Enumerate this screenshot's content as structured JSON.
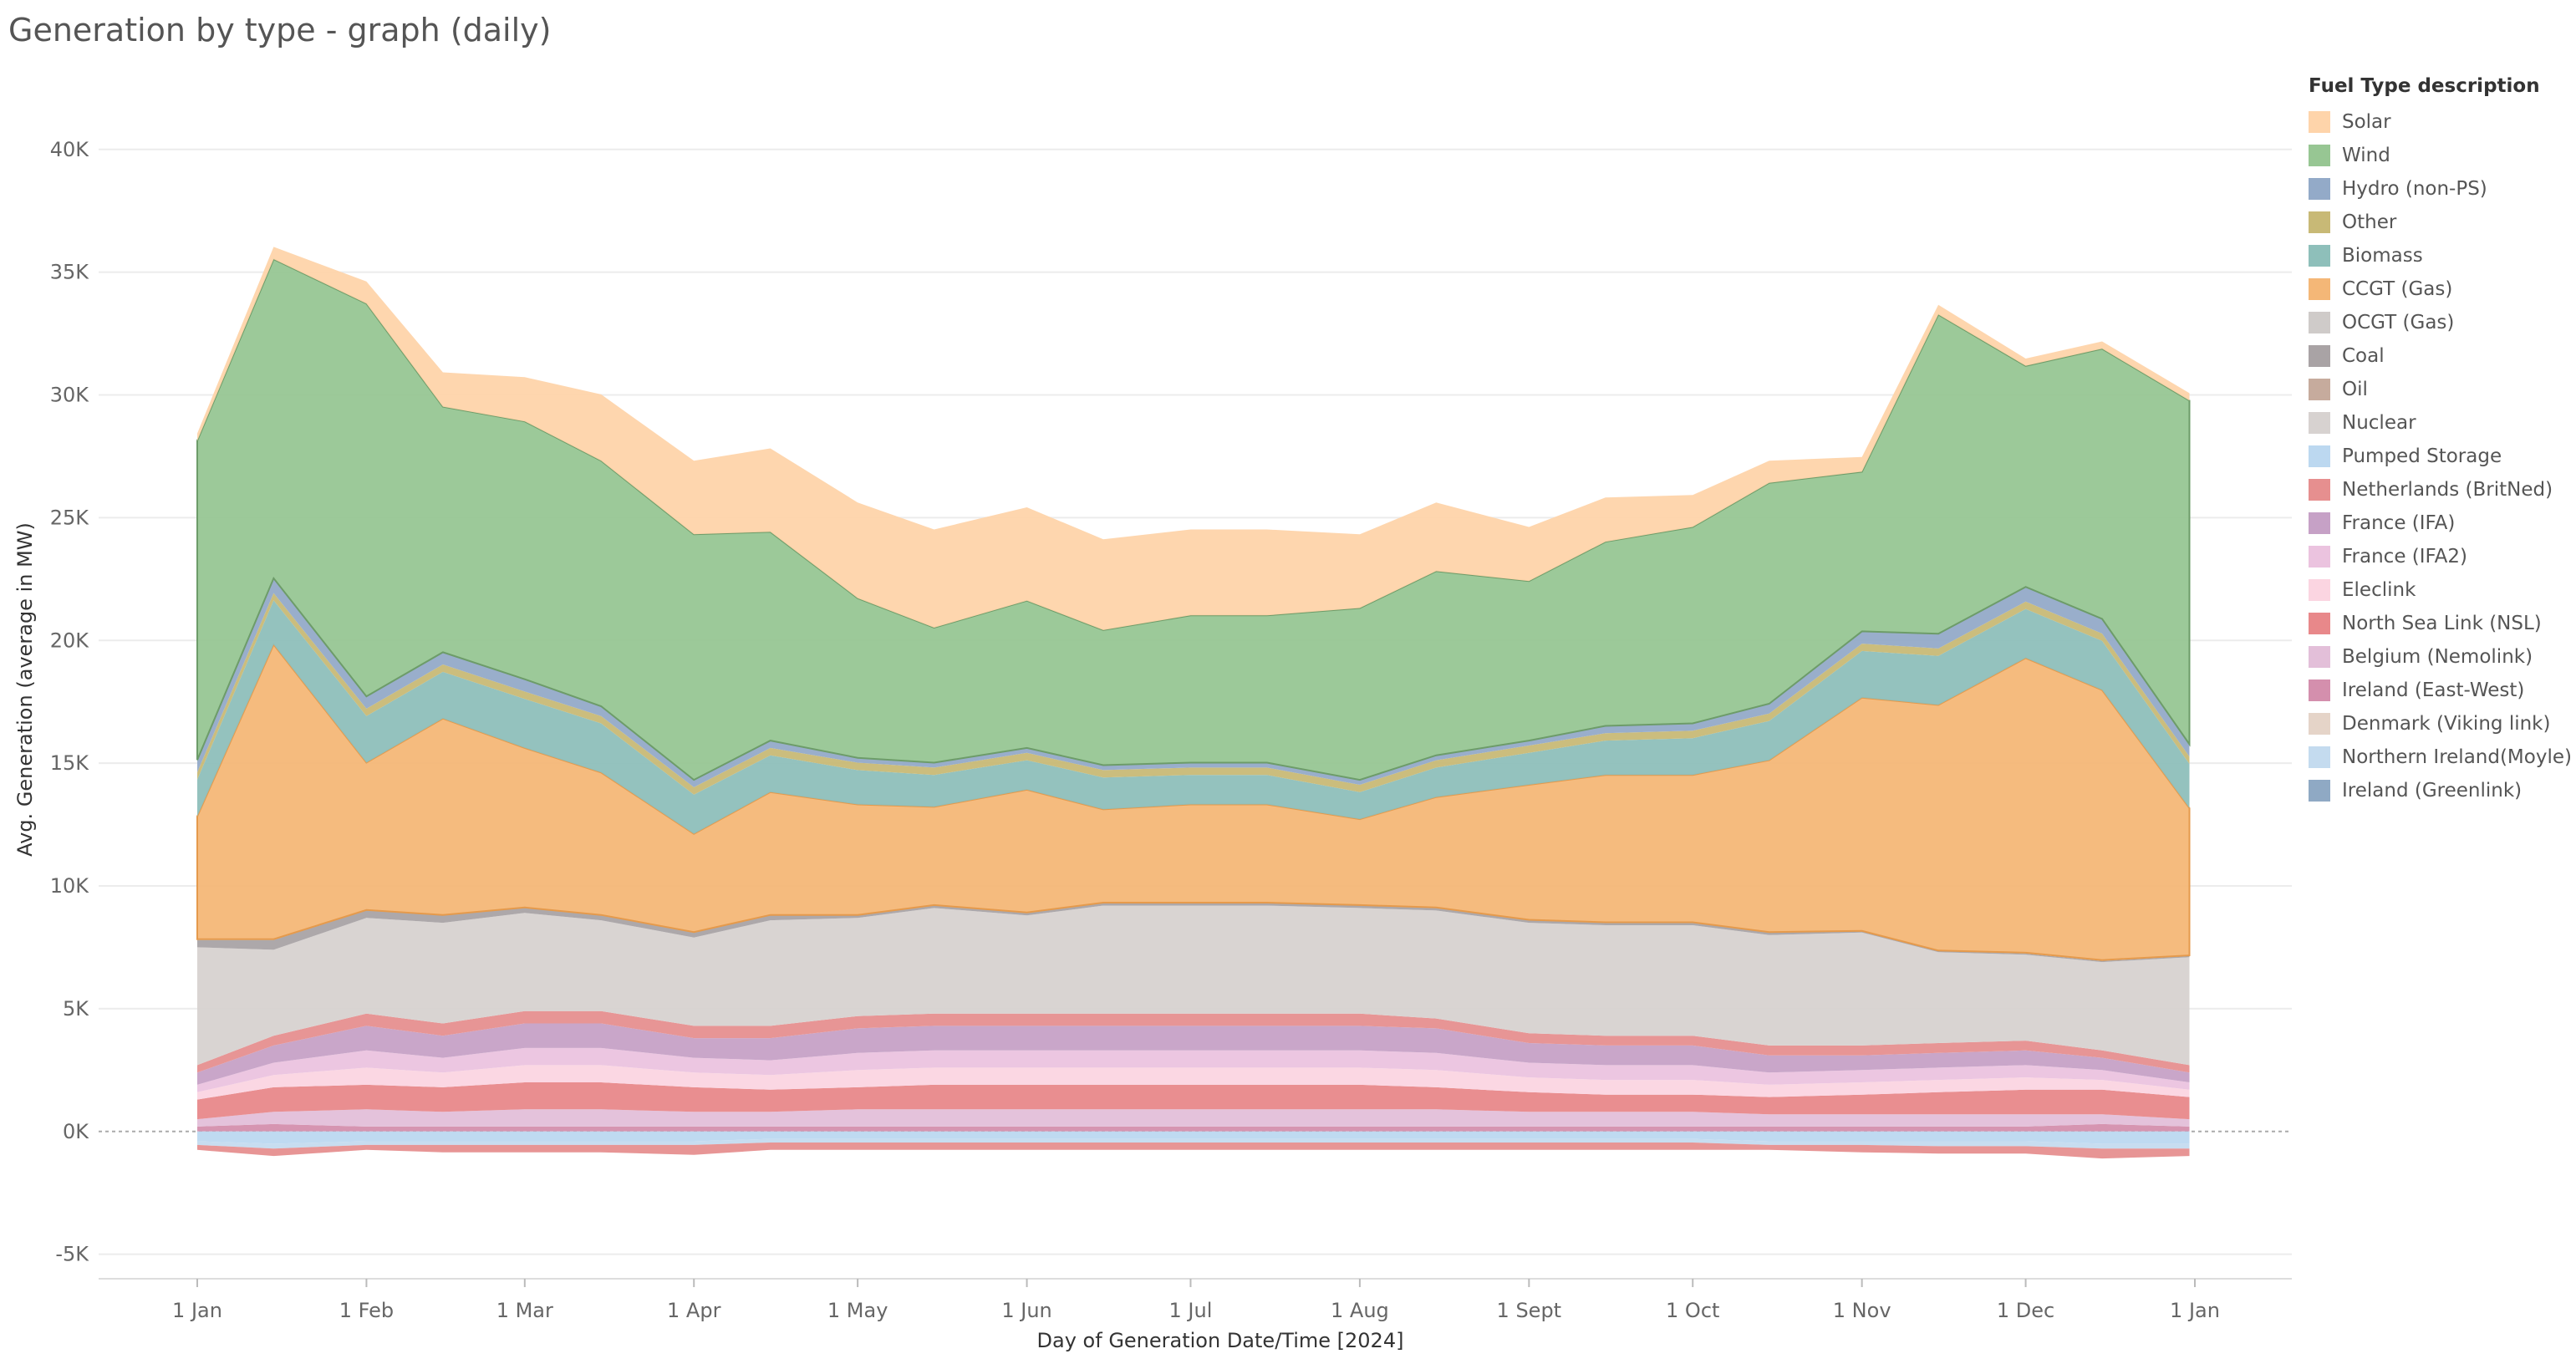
{
  "title": "Generation by type - graph (daily)",
  "chart_data": {
    "type": "area",
    "stacked": true,
    "xlabel": "Day of Generation Date/Time [2024]",
    "ylabel": "Avg. Generation (average in MW)",
    "ylim": [
      -6000,
      42000
    ],
    "yticks": [
      {
        "value": -5000,
        "label": "-5K"
      },
      {
        "value": 0,
        "label": "0K"
      },
      {
        "value": 5000,
        "label": "5K"
      },
      {
        "value": 10000,
        "label": "10K"
      },
      {
        "value": 15000,
        "label": "15K"
      },
      {
        "value": 20000,
        "label": "20K"
      },
      {
        "value": 25000,
        "label": "25K"
      },
      {
        "value": 30000,
        "label": "30K"
      },
      {
        "value": 35000,
        "label": "35K"
      },
      {
        "value": 40000,
        "label": "40K"
      }
    ],
    "xticks": [
      {
        "date": "2024-01-01",
        "label": "1 Jan"
      },
      {
        "date": "2024-02-01",
        "label": "1 Feb"
      },
      {
        "date": "2024-03-01",
        "label": "1 Mar"
      },
      {
        "date": "2024-04-01",
        "label": "1 Apr"
      },
      {
        "date": "2024-05-01",
        "label": "1 May"
      },
      {
        "date": "2024-06-01",
        "label": "1 Jun"
      },
      {
        "date": "2024-07-01",
        "label": "1 Jul"
      },
      {
        "date": "2024-08-01",
        "label": "1 Aug"
      },
      {
        "date": "2024-09-01",
        "label": "1 Sept"
      },
      {
        "date": "2024-10-01",
        "label": "1 Oct"
      },
      {
        "date": "2024-11-01",
        "label": "1 Nov"
      },
      {
        "date": "2024-12-01",
        "label": "1 Dec"
      },
      {
        "date": "2025-01-01",
        "label": "1 Jan"
      }
    ],
    "x": [
      "2024-01-01",
      "2024-01-15",
      "2024-02-01",
      "2024-02-15",
      "2024-03-01",
      "2024-03-15",
      "2024-04-01",
      "2024-04-15",
      "2024-05-01",
      "2024-05-15",
      "2024-06-01",
      "2024-06-15",
      "2024-07-01",
      "2024-07-15",
      "2024-08-01",
      "2024-08-15",
      "2024-09-01",
      "2024-09-15",
      "2024-10-01",
      "2024-10-15",
      "2024-11-01",
      "2024-11-15",
      "2024-12-01",
      "2024-12-15",
      "2024-12-31"
    ],
    "grid": true,
    "legend": {
      "title": "Fuel Type description",
      "position": "right"
    },
    "positive_series": [
      {
        "name": "Ireland (East-West)",
        "color": "#d48fad",
        "values": [
          200,
          300,
          200,
          200,
          200,
          200,
          200,
          200,
          200,
          200,
          200,
          200,
          200,
          200,
          200,
          200,
          200,
          200,
          200,
          200,
          200,
          200,
          200,
          300,
          200
        ]
      },
      {
        "name": "Belgium (Nemolink)",
        "color": "#e3bfd9",
        "values": [
          300,
          500,
          700,
          600,
          700,
          700,
          600,
          600,
          700,
          700,
          700,
          700,
          700,
          700,
          700,
          700,
          600,
          600,
          600,
          500,
          500,
          500,
          500,
          400,
          300
        ]
      },
      {
        "name": "North Sea Link (NSL)",
        "color": "#e8888a",
        "values": [
          800,
          1000,
          1000,
          1000,
          1100,
          1100,
          1000,
          900,
          900,
          1000,
          1000,
          1000,
          1000,
          1000,
          1000,
          900,
          800,
          700,
          700,
          700,
          800,
          900,
          1000,
          1000,
          900
        ]
      },
      {
        "name": "Eleclink",
        "color": "#fbd5e1",
        "values": [
          300,
          500,
          700,
          600,
          700,
          700,
          600,
          600,
          700,
          700,
          700,
          700,
          700,
          700,
          700,
          700,
          600,
          600,
          600,
          500,
          500,
          500,
          500,
          400,
          300
        ]
      },
      {
        "name": "France (IFA2)",
        "color": "#ebc3df",
        "values": [
          300,
          500,
          700,
          600,
          700,
          700,
          600,
          600,
          700,
          700,
          700,
          700,
          700,
          700,
          700,
          700,
          600,
          600,
          600,
          500,
          500,
          500,
          500,
          400,
          300
        ]
      },
      {
        "name": "France (IFA)",
        "color": "#c6a1c6",
        "values": [
          500,
          700,
          1000,
          900,
          1000,
          1000,
          800,
          900,
          1000,
          1000,
          1000,
          1000,
          1000,
          1000,
          1000,
          1000,
          800,
          800,
          800,
          700,
          600,
          600,
          600,
          500,
          400
        ]
      },
      {
        "name": "Netherlands (BritNed)",
        "color": "#e68f8f",
        "values": [
          300,
          400,
          500,
          500,
          500,
          500,
          500,
          500,
          500,
          500,
          500,
          500,
          500,
          500,
          500,
          400,
          400,
          400,
          400,
          400,
          400,
          400,
          400,
          300,
          300
        ]
      },
      {
        "name": "Nuclear",
        "color": "#d7d2d0",
        "values": [
          4800,
          3500,
          3900,
          4100,
          4000,
          3700,
          3600,
          4300,
          4000,
          4300,
          4000,
          4400,
          4400,
          4400,
          4300,
          4400,
          4500,
          4500,
          4500,
          4500,
          4600,
          3700,
          3500,
          3600,
          4400
        ]
      },
      {
        "name": "Coal",
        "color": "#a9a3a5",
        "values": [
          300,
          400,
          300,
          300,
          200,
          200,
          200,
          200,
          100,
          100,
          100,
          100,
          100,
          100,
          100,
          100,
          100,
          100,
          100,
          100,
          50,
          50,
          50,
          50,
          50
        ]
      },
      {
        "name": "OCGT (Gas)",
        "color": "#cfcbc9",
        "values": [
          30,
          30,
          20,
          20,
          20,
          20,
          20,
          20,
          20,
          20,
          20,
          20,
          20,
          20,
          20,
          20,
          20,
          20,
          20,
          20,
          20,
          20,
          30,
          30,
          20
        ]
      },
      {
        "name": "CCGT (Gas)",
        "color": "#f4b777",
        "values": [
          5000,
          12000,
          6000,
          8000,
          6500,
          5800,
          4000,
          5000,
          4500,
          4000,
          5000,
          3800,
          4000,
          4000,
          3500,
          4500,
          5500,
          6000,
          6000,
          7000,
          9500,
          10000,
          12000,
          11000,
          6000
        ]
      },
      {
        "name": "Biomass",
        "color": "#8ebfba",
        "values": [
          1500,
          1800,
          1900,
          1900,
          2000,
          2000,
          1600,
          1500,
          1400,
          1300,
          1200,
          1300,
          1200,
          1200,
          1100,
          1200,
          1300,
          1400,
          1500,
          1600,
          1900,
          2000,
          2000,
          2000,
          1800
        ]
      },
      {
        "name": "Other",
        "color": "#c8b976",
        "values": [
          300,
          300,
          300,
          300,
          300,
          300,
          300,
          300,
          300,
          300,
          300,
          300,
          300,
          300,
          300,
          300,
          300,
          300,
          300,
          300,
          300,
          300,
          300,
          300,
          300
        ]
      },
      {
        "name": "Hydro (non-PS)",
        "color": "#93aac8",
        "values": [
          500,
          600,
          500,
          500,
          500,
          400,
          300,
          300,
          200,
          200,
          200,
          200,
          200,
          200,
          200,
          200,
          200,
          300,
          300,
          400,
          500,
          600,
          600,
          600,
          500
        ]
      },
      {
        "name": "Wind",
        "color": "#97c693",
        "values": [
          13000,
          13000,
          16000,
          10000,
          10500,
          10000,
          10000,
          8500,
          6500,
          5500,
          6000,
          5500,
          6000,
          6000,
          7000,
          7500,
          6500,
          7500,
          8000,
          9000,
          6500,
          13000,
          9000,
          11000,
          14000
        ]
      },
      {
        "name": "Solar",
        "color": "#fed4aa",
        "values": [
          300,
          500,
          900,
          1400,
          1800,
          2700,
          3000,
          3400,
          3900,
          4000,
          3800,
          3700,
          3500,
          3500,
          3000,
          2800,
          2200,
          1800,
          1300,
          900,
          600,
          400,
          300,
          300,
          300
        ]
      }
    ],
    "negative_series": [
      {
        "name": "Pumped Storage",
        "color": "#bcd8f0",
        "values": [
          -400,
          -500,
          -400,
          -400,
          -400,
          -400,
          -400,
          -300,
          -300,
          -300,
          -300,
          -300,
          -300,
          -300,
          -300,
          -300,
          -300,
          -300,
          -300,
          -400,
          -400,
          -400,
          -400,
          -500,
          -500
        ]
      },
      {
        "name": "Northern Ireland(Moyle)",
        "color": "#c4dbef",
        "values": [
          -150,
          -200,
          -150,
          -150,
          -150,
          -150,
          -150,
          -150,
          -150,
          -150,
          -150,
          -150,
          -150,
          -150,
          -150,
          -150,
          -150,
          -150,
          -150,
          -150,
          -150,
          -200,
          -200,
          -200,
          -200
        ]
      },
      {
        "name": "Ireland (Greenlink)",
        "color": "#8fa9c4",
        "values": [
          0,
          0,
          0,
          0,
          0,
          0,
          0,
          0,
          0,
          0,
          0,
          0,
          0,
          0,
          0,
          0,
          0,
          0,
          0,
          0,
          0,
          0,
          0,
          0,
          0
        ]
      },
      {
        "name": "Denmark (Viking link)",
        "color": "#e5d4c8",
        "values": [
          0,
          0,
          0,
          0,
          0,
          0,
          0,
          0,
          0,
          0,
          0,
          0,
          0,
          0,
          0,
          0,
          0,
          0,
          0,
          0,
          0,
          0,
          0,
          0,
          0
        ]
      },
      {
        "name": "Netherlands (BritNed)",
        "color": "#e68f8f",
        "values": [
          -200,
          -300,
          -200,
          -300,
          -300,
          -300,
          -400,
          -300,
          -300,
          -300,
          -300,
          -300,
          -300,
          -300,
          -300,
          -300,
          -300,
          -300,
          -300,
          -200,
          -300,
          -300,
          -300,
          -400,
          -300
        ]
      }
    ],
    "legend_entries": [
      {
        "name": "Solar",
        "color": "#fed4aa"
      },
      {
        "name": "Wind",
        "color": "#97c693"
      },
      {
        "name": "Hydro (non-PS)",
        "color": "#93aac8"
      },
      {
        "name": "Other",
        "color": "#c8b976"
      },
      {
        "name": "Biomass",
        "color": "#8ebfba"
      },
      {
        "name": "CCGT (Gas)",
        "color": "#f4b777"
      },
      {
        "name": "OCGT (Gas)",
        "color": "#cfcbc9"
      },
      {
        "name": "Coal",
        "color": "#a9a3a5"
      },
      {
        "name": "Oil",
        "color": "#c6ab9d"
      },
      {
        "name": "Nuclear",
        "color": "#d7d2d0"
      },
      {
        "name": "Pumped Storage",
        "color": "#bcd8f0"
      },
      {
        "name": "Netherlands (BritNed)",
        "color": "#e68f8f"
      },
      {
        "name": "France (IFA)",
        "color": "#c6a1c6"
      },
      {
        "name": "France (IFA2)",
        "color": "#ebc3df"
      },
      {
        "name": "Eleclink",
        "color": "#fbd5e1"
      },
      {
        "name": "North Sea Link (NSL)",
        "color": "#e8888a"
      },
      {
        "name": "Belgium (Nemolink)",
        "color": "#e3bfd9"
      },
      {
        "name": "Ireland (East-West)",
        "color": "#d48fad"
      },
      {
        "name": "Denmark (Viking link)",
        "color": "#e5d4c8"
      },
      {
        "name": "Northern Ireland(Moyle)",
        "color": "#c4dbef"
      },
      {
        "name": "Ireland (Greenlink)",
        "color": "#8fa9c4"
      }
    ]
  }
}
